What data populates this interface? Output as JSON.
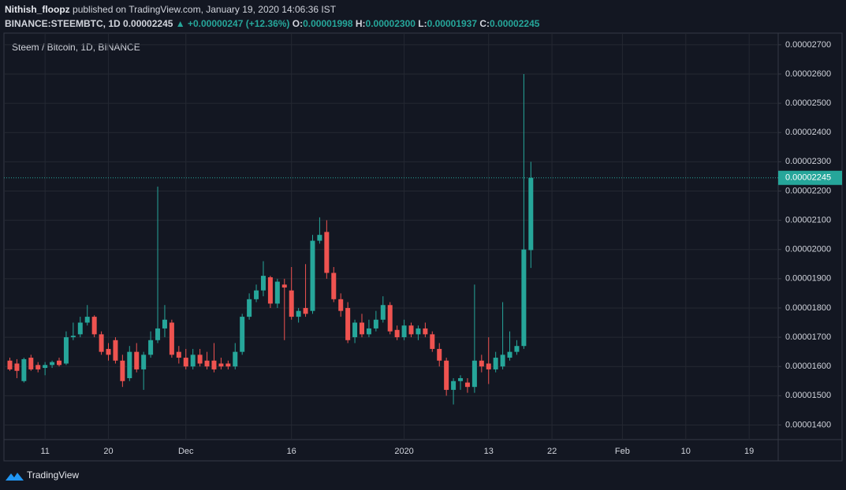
{
  "header": {
    "author": "Nithish_floopz",
    "published": "published on TradingView.com, January 19, 2020 14:06:36 IST",
    "symbol": "BINANCE:STEEMBTC, 1D",
    "last": "0.00002245",
    "change": "▲ +0.00000247 (+12.36%)",
    "o_label": "O:",
    "o": "0.00001998",
    "h_label": "H:",
    "h": "0.00002300",
    "l_label": "L:",
    "l": "0.00001937",
    "c_label": "C:",
    "c": "0.00002245"
  },
  "footer": {
    "brand": "TradingView"
  },
  "chart_data": {
    "type": "candlestick",
    "title": "Steem / Bitcoin, 1D, BINANCE",
    "up_color": "#26a69a",
    "down_color": "#ef5350",
    "grid": true,
    "last_price_line": true,
    "categories": [
      null,
      null,
      null,
      null,
      null,
      "11",
      null,
      null,
      null,
      null,
      null,
      null,
      null,
      null,
      "20",
      null,
      null,
      null,
      null,
      null,
      null,
      null,
      null,
      null,
      null,
      "Dec",
      null,
      null,
      null,
      null,
      null,
      null,
      null,
      null,
      null,
      null,
      null,
      null,
      null,
      null,
      "16",
      null,
      null,
      null,
      null,
      null,
      null,
      null,
      null,
      null,
      null,
      null,
      null,
      null,
      null,
      null,
      "2020",
      null,
      null,
      null,
      null,
      null,
      null,
      null,
      null,
      null,
      null,
      null,
      "13",
      null,
      null,
      null,
      null,
      null,
      null,
      null,
      null,
      "22",
      null,
      null,
      null,
      null,
      null,
      null,
      null,
      null,
      null,
      "Feb",
      null,
      null,
      null,
      null,
      null,
      null,
      null,
      null,
      "10",
      null,
      null,
      null,
      null,
      null,
      null,
      null,
      null,
      "19",
      null,
      null,
      null,
      null
    ],
    "series": {
      "open": [
        1.62e-05,
        1.61e-05,
        1.55e-05,
        1.63e-05,
        1.605e-05,
        1.595e-05,
        1.605e-05,
        1.62e-05,
        1.61e-05,
        1.7e-05,
        1.71e-05,
        1.75e-05,
        1.77e-05,
        1.71e-05,
        1.66e-05,
        1.69e-05,
        1.62e-05,
        1.56e-05,
        1.65e-05,
        1.59e-05,
        1.64e-05,
        1.69e-05,
        1.73e-05,
        1.75e-05,
        1.65e-05,
        1.63e-05,
        1.6e-05,
        1.64e-05,
        1.62e-05,
        1.62e-05,
        1.61e-05,
        1.61e-05,
        1.6e-05,
        1.65e-05,
        1.77e-05,
        1.83e-05,
        1.86e-05,
        1.905e-05,
        1.815e-05,
        1.88e-05,
        1.86e-05,
        1.77e-05,
        1.8e-05,
        1.79e-05,
        2.03e-05,
        2.06e-05,
        1.92e-05,
        1.83e-05,
        1.8e-05,
        1.7e-05,
        1.75e-05,
        1.71e-05,
        1.73e-05,
        1.76e-05,
        1.81e-05,
        1.725e-05,
        1.7e-05,
        1.74e-05,
        1.71e-05,
        1.73e-05,
        1.71e-05,
        1.66e-05,
        1.62e-05,
        1.52e-05,
        1.55e-05,
        1.545e-05,
        1.53e-05,
        1.62e-05,
        1.61e-05,
        1.59e-05,
        1.6e-05,
        1.63e-05,
        1.65e-05,
        1.67e-05,
        1.998e-05,
        null,
        null,
        null,
        null,
        null,
        null,
        null,
        null,
        null,
        null,
        null,
        null,
        null,
        null,
        null,
        null,
        null,
        null,
        null,
        null,
        null,
        null,
        null,
        null,
        null,
        null,
        null,
        null,
        null,
        null,
        null,
        null,
        null,
        null,
        null
      ],
      "high": [
        1.63e-05,
        1.625e-05,
        1.63e-05,
        1.64e-05,
        1.615e-05,
        1.615e-05,
        1.62e-05,
        1.63e-05,
        1.72e-05,
        1.75e-05,
        1.77e-05,
        1.81e-05,
        1.775e-05,
        1.72e-05,
        1.68e-05,
        1.7e-05,
        1.64e-05,
        1.67e-05,
        1.68e-05,
        1.65e-05,
        1.72e-05,
        2.215e-05,
        1.81e-05,
        1.76e-05,
        1.67e-05,
        1.66e-05,
        1.66e-05,
        1.66e-05,
        1.65e-05,
        1.68e-05,
        1.63e-05,
        1.62e-05,
        1.68e-05,
        1.78e-05,
        1.85e-05,
        1.88e-05,
        1.96e-05,
        1.91e-05,
        1.9e-05,
        1.9e-05,
        1.94e-05,
        1.8e-05,
        1.95e-05,
        2.05e-05,
        2.11e-05,
        2.1e-05,
        1.94e-05,
        1.85e-05,
        1.82e-05,
        1.76e-05,
        1.78e-05,
        1.76e-05,
        1.79e-05,
        1.84e-05,
        1.82e-05,
        1.74e-05,
        1.76e-05,
        1.75e-05,
        1.74e-05,
        1.75e-05,
        1.72e-05,
        1.68e-05,
        1.63e-05,
        1.56e-05,
        1.57e-05,
        1.56e-05,
        1.88e-05,
        1.64e-05,
        1.7e-05,
        1.65e-05,
        1.82e-05,
        1.72e-05,
        1.69e-05,
        2.6e-05,
        2.3e-05,
        null,
        null,
        null,
        null,
        null,
        null,
        null,
        null,
        null,
        null,
        null,
        null,
        null,
        null,
        null,
        null,
        null,
        null,
        null,
        null,
        null,
        null,
        null,
        null,
        null,
        null,
        null,
        null,
        null,
        null,
        null,
        null,
        null,
        null,
        null
      ],
      "low": [
        1.585e-05,
        1.56e-05,
        1.545e-05,
        1.585e-05,
        1.58e-05,
        1.57e-05,
        1.595e-05,
        1.6e-05,
        1.605e-05,
        1.69e-05,
        1.7e-05,
        1.74e-05,
        1.7e-05,
        1.64e-05,
        1.62e-05,
        1.61e-05,
        1.53e-05,
        1.55e-05,
        1.58e-05,
        1.52e-05,
        1.63e-05,
        1.68e-05,
        1.7e-05,
        1.63e-05,
        1.61e-05,
        1.59e-05,
        1.59e-05,
        1.6e-05,
        1.59e-05,
        1.58e-05,
        1.59e-05,
        1.59e-05,
        1.59e-05,
        1.64e-05,
        1.76e-05,
        1.82e-05,
        1.84e-05,
        1.8e-05,
        1.8e-05,
        1.69e-05,
        1.76e-05,
        1.75e-05,
        1.77e-05,
        1.78e-05,
        2.02e-05,
        1.9e-05,
        1.82e-05,
        1.77e-05,
        1.68e-05,
        1.68e-05,
        1.7e-05,
        1.7e-05,
        1.72e-05,
        1.75e-05,
        1.71e-05,
        1.69e-05,
        1.69e-05,
        1.7e-05,
        1.69e-05,
        1.7e-05,
        1.65e-05,
        1.6e-05,
        1.5e-05,
        1.47e-05,
        1.52e-05,
        1.51e-05,
        1.51e-05,
        1.58e-05,
        1.54e-05,
        1.58e-05,
        1.59e-05,
        1.62e-05,
        1.64e-05,
        1.66e-05,
        1.937e-05,
        null,
        null,
        null,
        null,
        null,
        null,
        null,
        null,
        null,
        null,
        null,
        null,
        null,
        null,
        null,
        null,
        null,
        null,
        null,
        null,
        null,
        null,
        null,
        null,
        null,
        null,
        null,
        null,
        null,
        null,
        null,
        null,
        null,
        null,
        null
      ],
      "close": [
        1.59e-05,
        1.585e-05,
        1.625e-05,
        1.59e-05,
        1.59e-05,
        1.605e-05,
        1.615e-05,
        1.605e-05,
        1.7e-05,
        1.705e-05,
        1.75e-05,
        1.77e-05,
        1.71e-05,
        1.65e-05,
        1.64e-05,
        1.62e-05,
        1.55e-05,
        1.65e-05,
        1.59e-05,
        1.64e-05,
        1.69e-05,
        1.73e-05,
        1.76e-05,
        1.64e-05,
        1.63e-05,
        1.6e-05,
        1.64e-05,
        1.61e-05,
        1.6e-05,
        1.59e-05,
        1.6e-05,
        1.6e-05,
        1.65e-05,
        1.77e-05,
        1.83e-05,
        1.86e-05,
        1.91e-05,
        1.815e-05,
        1.89e-05,
        1.87e-05,
        1.77e-05,
        1.79e-05,
        1.78e-05,
        2.03e-05,
        2.05e-05,
        1.92e-05,
        1.83e-05,
        1.79e-05,
        1.69e-05,
        1.75e-05,
        1.71e-05,
        1.73e-05,
        1.76e-05,
        1.81e-05,
        1.72e-05,
        1.7e-05,
        1.74e-05,
        1.71e-05,
        1.73e-05,
        1.71e-05,
        1.66e-05,
        1.62e-05,
        1.52e-05,
        1.55e-05,
        1.56e-05,
        1.53e-05,
        1.62e-05,
        1.6e-05,
        1.59e-05,
        1.63e-05,
        1.64e-05,
        1.65e-05,
        1.67e-05,
        2e-05,
        2.245e-05,
        null,
        null,
        null,
        null,
        null,
        null,
        null,
        null,
        null,
        null,
        null,
        null,
        null,
        null,
        null,
        null,
        null,
        null,
        null,
        null,
        null,
        null,
        null,
        null,
        null,
        null,
        null,
        null,
        null,
        null,
        null,
        null,
        null,
        null,
        null
      ]
    },
    "ylim": [
      1.35e-05,
      2.74e-05
    ],
    "yticks": [
      {
        "value": 1.4e-05,
        "label": "0.00001400"
      },
      {
        "value": 1.5e-05,
        "label": "0.00001500"
      },
      {
        "value": 1.6e-05,
        "label": "0.00001600"
      },
      {
        "value": 1.7e-05,
        "label": "0.00001700"
      },
      {
        "value": 1.8e-05,
        "label": "0.00001800"
      },
      {
        "value": 1.9e-05,
        "label": "0.00001900"
      },
      {
        "value": 2e-05,
        "label": "0.00002000"
      },
      {
        "value": 2.1e-05,
        "label": "0.00002100"
      },
      {
        "value": 2.2e-05,
        "label": "0.00002200"
      },
      {
        "value": 2.3e-05,
        "label": "0.00002300"
      },
      {
        "value": 2.4e-05,
        "label": "0.00002400"
      },
      {
        "value": 2.5e-05,
        "label": "0.00002500"
      },
      {
        "value": 2.6e-05,
        "label": "0.00002600"
      },
      {
        "value": 2.7e-05,
        "label": "0.00002700"
      }
    ]
  }
}
